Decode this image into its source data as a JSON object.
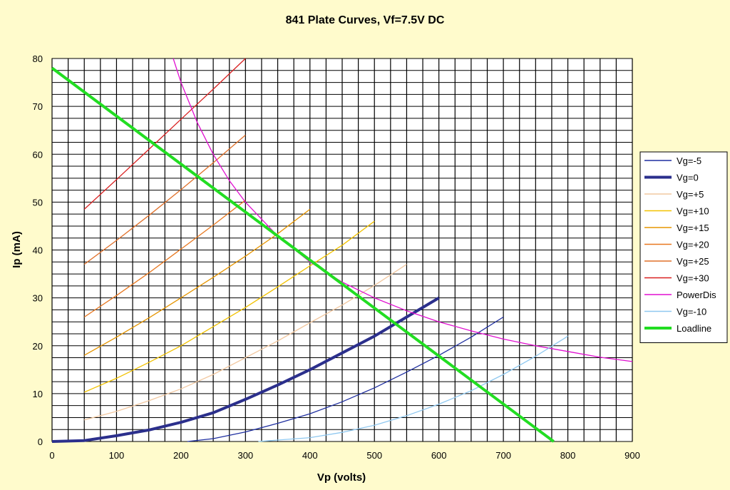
{
  "chart_data": {
    "type": "line",
    "title": "841 Plate Curves, Vf=7.5V DC",
    "xlabel": "Vp (volts)",
    "ylabel": "Ip (mA)",
    "xlim": [
      0,
      900
    ],
    "ylim": [
      0,
      80
    ],
    "x_ticks": [
      0,
      100,
      200,
      300,
      400,
      500,
      600,
      700,
      800,
      900
    ],
    "y_ticks": [
      0,
      10,
      20,
      30,
      40,
      50,
      60,
      70,
      80
    ],
    "grid": true,
    "legend_position": "right",
    "series": [
      {
        "name": "Vg=-5",
        "color": "#1f2fa0",
        "x": [
          210,
          250,
          300,
          350,
          400,
          450,
          500,
          550,
          600,
          650,
          700
        ],
        "y": [
          0,
          0.6,
          2,
          3.8,
          5.8,
          8.3,
          11.2,
          14.5,
          18,
          21.8,
          26
        ]
      },
      {
        "name": "Vg=0",
        "color": "#2b2f8c",
        "x": [
          0,
          50,
          100,
          150,
          200,
          250,
          300,
          350,
          400,
          450,
          500,
          550,
          600
        ],
        "y": [
          0,
          0.2,
          1.2,
          2.4,
          4,
          6,
          8.8,
          11.8,
          15,
          18.5,
          22,
          26,
          30
        ]
      },
      {
        "name": "Vg=+5",
        "color": "#f2c8a0",
        "x": [
          50,
          100,
          150,
          200,
          250,
          300,
          350,
          400,
          450,
          500,
          550
        ],
        "y": [
          4.5,
          6.3,
          8.5,
          11,
          14,
          17.5,
          21,
          24.8,
          28.5,
          32.6,
          37
        ]
      },
      {
        "name": "Vg=+10",
        "color": "#f2c200",
        "x": [
          50,
          100,
          150,
          200,
          250,
          300,
          350,
          400,
          450,
          500
        ],
        "y": [
          10.3,
          13.2,
          16.5,
          20,
          24,
          28,
          32.3,
          36.7,
          41,
          46
        ]
      },
      {
        "name": "Vg=+15",
        "color": "#e69500",
        "x": [
          50,
          100,
          150,
          200,
          250,
          300,
          350,
          400
        ],
        "y": [
          18,
          21.8,
          25.8,
          30,
          34.3,
          38.7,
          43.4,
          48.5
        ]
      },
      {
        "name": "Vg=+20",
        "color": "#e87820",
        "x": [
          50,
          100,
          150,
          200,
          250,
          300
        ],
        "y": [
          26,
          30.5,
          35.2,
          40.2,
          45.2,
          50.4
        ]
      },
      {
        "name": "Vg=+25",
        "color": "#e0702a",
        "x": [
          50,
          100,
          150,
          200,
          250,
          300
        ],
        "y": [
          37,
          42,
          47.2,
          52.6,
          58.2,
          64
        ]
      },
      {
        "name": "Vg=+30",
        "color": "#d92020",
        "x": [
          50,
          100,
          150,
          200,
          250,
          300
        ],
        "y": [
          48.5,
          54.7,
          61,
          67.3,
          73.6,
          80
        ]
      },
      {
        "name": "PowerDis",
        "color": "#e010d0",
        "x": [
          188,
          200,
          225,
          250,
          275,
          300,
          350,
          400,
          450,
          500,
          550,
          600,
          650,
          700,
          750,
          800,
          850,
          900
        ],
        "y": [
          80,
          75,
          66.7,
          60,
          54.5,
          50,
          42.9,
          37.5,
          33.3,
          30,
          27.3,
          25,
          23.1,
          21.4,
          20,
          18.8,
          17.6,
          16.7
        ]
      },
      {
        "name": "Vg=-10",
        "color": "#8fc8f0",
        "x": [
          320,
          400,
          450,
          500,
          550,
          600,
          650,
          700,
          750,
          800
        ],
        "y": [
          0,
          0.8,
          1.9,
          3.4,
          5.4,
          7.8,
          10.6,
          14,
          17.8,
          22
        ]
      },
      {
        "name": "Loadline",
        "color": "#22dd22",
        "x": [
          0,
          778
        ],
        "y": [
          78,
          0
        ]
      }
    ],
    "series_styles": {
      "Vg=0": 4,
      "Loadline": 4
    }
  }
}
